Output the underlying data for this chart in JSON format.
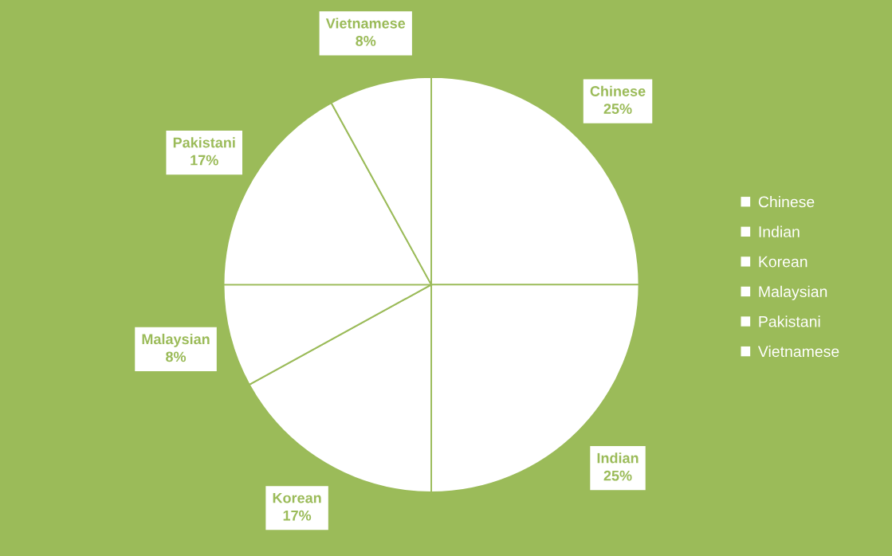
{
  "chart_data": {
    "type": "pie",
    "categories": [
      "Chinese",
      "Indian",
      "Korean",
      "Malaysian",
      "Pakistani",
      "Vietnamese"
    ],
    "values": [
      25,
      25,
      17,
      8,
      17,
      8
    ],
    "value_labels": [
      "25%",
      "25%",
      "17%",
      "8%",
      "17%",
      "8%"
    ],
    "colors": [
      "#ffffff",
      "#ffffff",
      "#ffffff",
      "#ffffff",
      "#ffffff",
      "#ffffff"
    ],
    "legend": "right"
  }
}
